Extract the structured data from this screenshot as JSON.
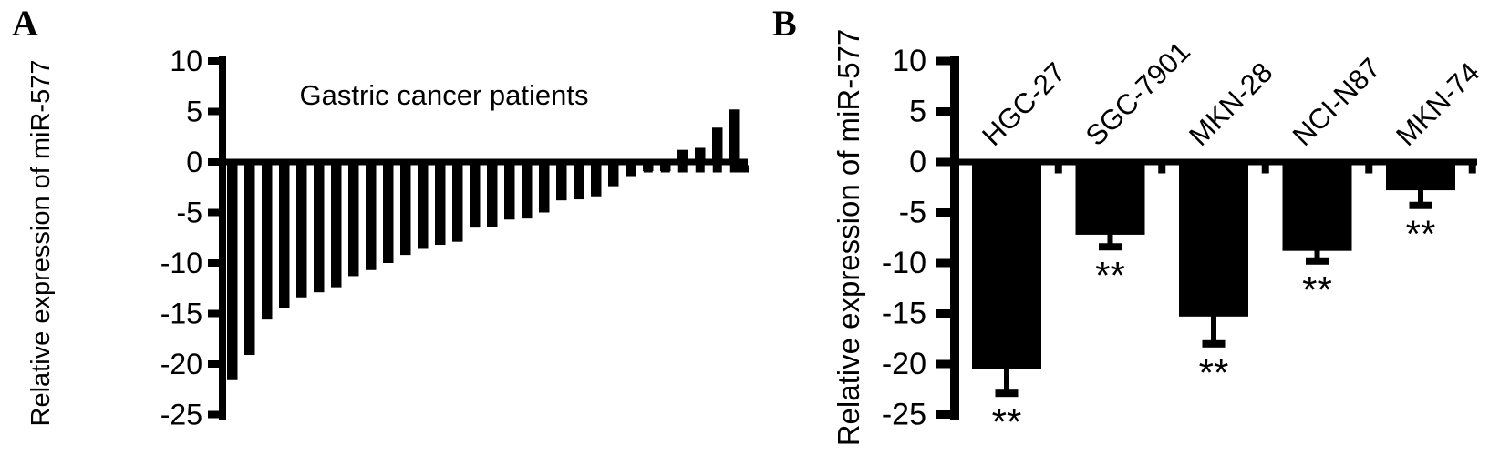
{
  "figure": {
    "panel_a_label": "A",
    "panel_b_label": "B",
    "ink_color": "#000000",
    "background_color": "#ffffff"
  },
  "chart_data": [
    {
      "panel": "A",
      "type": "bar",
      "subtype": "waterfall",
      "title": "Gastric cancer patients",
      "xlabel": "",
      "ylabel": "Relative expression of miR-577",
      "ylim": [
        -25,
        10
      ],
      "y_ticks": [
        10,
        5,
        0,
        -5,
        -10,
        -15,
        -20,
        -25
      ],
      "grid": false,
      "bar_color": "#000000",
      "values": [
        -21.6,
        -19.1,
        -15.6,
        -14.5,
        -13.4,
        -12.9,
        -12.4,
        -11.3,
        -10.7,
        -10.0,
        -9.2,
        -8.6,
        -8.2,
        -7.9,
        -6.5,
        -6.4,
        -5.7,
        -5.6,
        -5.0,
        -3.8,
        -3.7,
        -3.4,
        -2.4,
        -1.4,
        -0.9,
        -0.9,
        1.2,
        1.4,
        3.4,
        5.2
      ]
    },
    {
      "panel": "B",
      "type": "bar",
      "title": "",
      "xlabel": "",
      "ylabel": "Relative expression of miR-577",
      "ylim": [
        -25,
        10
      ],
      "y_ticks": [
        10,
        5,
        0,
        -5,
        -10,
        -15,
        -20,
        -25
      ],
      "grid": false,
      "bar_color": "#000000",
      "categories": [
        "HGC-27",
        "SGC-7901",
        "MKN-28",
        "NCI-N87",
        "MKN-74"
      ],
      "values": [
        -20.5,
        -7.2,
        -15.3,
        -8.8,
        -2.8
      ],
      "errors": [
        2.4,
        1.2,
        2.7,
        1.0,
        1.5
      ],
      "error_direction": "down",
      "significance": [
        "**",
        "**",
        "**",
        "**",
        "**"
      ]
    }
  ]
}
